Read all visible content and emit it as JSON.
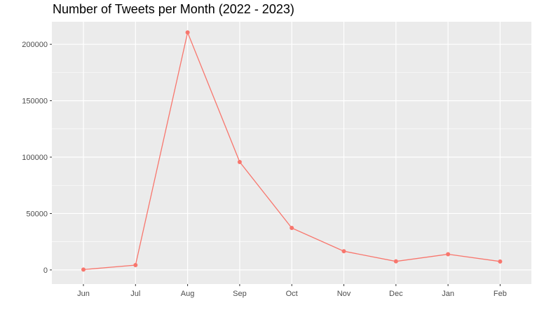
{
  "chart_data": {
    "type": "line",
    "title": "Number of Tweets per Month (2022 - 2023)",
    "xlabel": "",
    "ylabel": "",
    "categories": [
      "Jun",
      "Jul",
      "Aug",
      "Sep",
      "Oct",
      "Nov",
      "Dec",
      "Jan",
      "Feb"
    ],
    "series": [
      {
        "values": [
          300,
          4300,
          210500,
          95700,
          37200,
          16600,
          7600,
          13900,
          7500
        ]
      }
    ],
    "y_ticks": [
      0,
      50000,
      100000,
      150000,
      200000
    ],
    "ylim": [
      -12500,
      220000
    ],
    "grid": true,
    "legend": "none",
    "colors": {
      "line": "#f8766d",
      "panel": "#ebebeb",
      "grid": "#ffffff",
      "tick_text": "#4d4d4d"
    }
  }
}
